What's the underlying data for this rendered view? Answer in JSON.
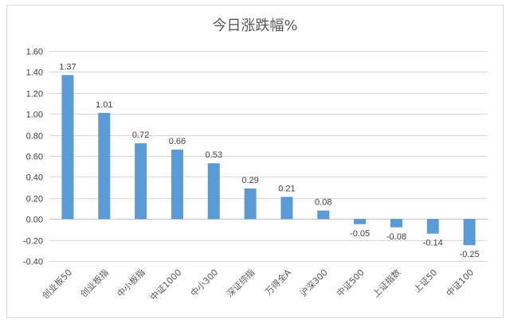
{
  "chart_data": {
    "type": "bar",
    "title": "今日涨跌幅%",
    "xlabel": "",
    "ylabel": "",
    "ylim": [
      -0.4,
      1.6
    ],
    "ytick_step": 0.2,
    "ytick_labels": [
      "-0.40",
      "-0.20",
      "0.00",
      "0.20",
      "0.40",
      "0.60",
      "0.80",
      "1.00",
      "1.20",
      "1.40",
      "1.60"
    ],
    "grid": true,
    "legend": "none",
    "bar_color": "#5b9bd5",
    "categories": [
      "创业板50",
      "创业板指",
      "中小板指",
      "中证1000",
      "中小300",
      "深证综指",
      "万得全A",
      "沪深300",
      "中证500",
      "上证指数",
      "上证50",
      "中证100"
    ],
    "values": [
      1.37,
      1.01,
      0.72,
      0.66,
      0.53,
      0.29,
      0.21,
      0.08,
      -0.05,
      -0.08,
      -0.14,
      -0.25
    ],
    "value_labels": [
      "1.37",
      "1.01",
      "0.72",
      "0.66",
      "0.53",
      "0.29",
      "0.21",
      "0.08",
      "-0.05",
      "-0.08",
      "-0.14",
      "-0.25"
    ]
  }
}
